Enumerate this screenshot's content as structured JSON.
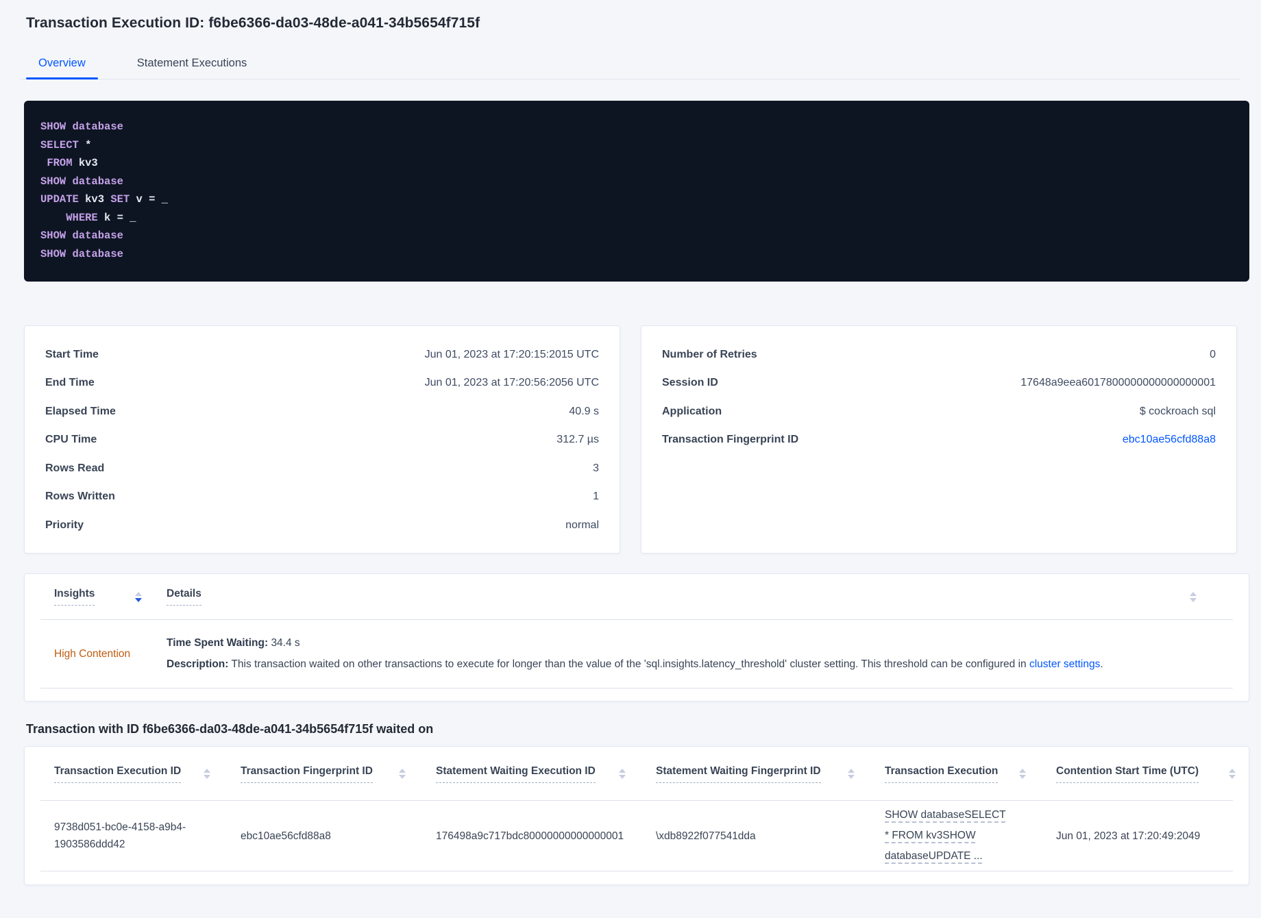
{
  "colors": {
    "accent_blue": "#0156ff",
    "warning_orange": "#bf5b10",
    "code_background": "#0d1522",
    "code_keyword": "#c5a1e9",
    "code_text": "#e7eaf3"
  },
  "header": {
    "title": "Transaction Execution ID: f6be6366-da03-48de-a041-34b5654f715f"
  },
  "tabs": [
    {
      "label": "Overview",
      "active": true
    },
    {
      "label": "Statement Executions",
      "active": false
    }
  ],
  "sql_box": {
    "lines": [
      {
        "segments": [
          {
            "text": "SHOW database",
            "kw": true
          }
        ]
      },
      {
        "segments": [
          {
            "text": "SELECT ",
            "kw": true
          },
          {
            "text": "*",
            "kw": false
          }
        ]
      },
      {
        "segments": [
          {
            "text": " ",
            "kw": false
          },
          {
            "text": "FROM",
            "kw": true
          },
          {
            "text": " kv3",
            "kw": false
          }
        ]
      },
      {
        "segments": [
          {
            "text": "SHOW database",
            "kw": true
          }
        ]
      },
      {
        "segments": [
          {
            "text": "UPDATE",
            "kw": true
          },
          {
            "text": " kv3 ",
            "kw": false
          },
          {
            "text": "SET",
            "kw": true
          },
          {
            "text": " v = _",
            "kw": false
          }
        ]
      },
      {
        "segments": [
          {
            "text": "    ",
            "kw": false
          },
          {
            "text": "WHERE",
            "kw": true
          },
          {
            "text": " k = _",
            "kw": false
          }
        ]
      },
      {
        "segments": [
          {
            "text": "SHOW database",
            "kw": true
          }
        ]
      },
      {
        "segments": [
          {
            "text": "SHOW database",
            "kw": true
          }
        ]
      }
    ]
  },
  "details_left": {
    "rows": [
      {
        "label": "Start Time",
        "value": "Jun 01, 2023 at 17:20:15:2015 UTC"
      },
      {
        "label": "End Time",
        "value": "Jun 01, 2023 at 17:20:56:2056 UTC"
      },
      {
        "label": "Elapsed Time",
        "value": "40.9 s"
      },
      {
        "label": "CPU Time",
        "value": "312.7 µs"
      },
      {
        "label": "Rows Read",
        "value": "3"
      },
      {
        "label": "Rows Written",
        "value": "1"
      },
      {
        "label": "Priority",
        "value": "normal"
      }
    ]
  },
  "details_right": {
    "rows": [
      {
        "label": "Number of Retries",
        "value": "0"
      },
      {
        "label": "Session ID",
        "value": "17648a9eea6017800000000000000001"
      },
      {
        "label": "Application",
        "value": "$ cockroach sql"
      },
      {
        "label": "Transaction Fingerprint ID",
        "value": "ebc10ae56cfd88a8",
        "link": true
      }
    ]
  },
  "insights_table": {
    "insights_column": "Insights",
    "details_column": "Details",
    "row": {
      "insight": "High Contention",
      "waiting_label": "Time Spent Waiting:",
      "waiting_value": "34.4 s",
      "description_label": "Description:",
      "description_text": "This transaction waited on other transactions to execute for longer than the value of the 'sql.insights.latency_threshold' cluster setting. This threshold can be configured in ",
      "description_link": "cluster settings",
      "description_suffix": "."
    }
  },
  "waited_section": {
    "heading": "Transaction with ID f6be6366-da03-48de-a041-34b5654f715f waited on",
    "columns": [
      "Transaction Execution ID",
      "Transaction Fingerprint ID",
      "Statement Waiting Execution ID",
      "Statement Waiting Fingerprint ID",
      "Transaction Execution",
      "Contention Start Time (UTC)"
    ],
    "row": {
      "transaction_execution_id": "9738d051-bc0e-4158-a9b4-1903586ddd42",
      "transaction_fingerprint_id": "ebc10ae56cfd88a8",
      "statement_waiting_execution_id": "176498a9c717bdc80000000000000001",
      "statement_waiting_fingerprint_id": "\\xdb8922f077541dda",
      "transaction_execution": "SHOW databaseSELECT * FROM kv3SHOW databaseUPDATE ...",
      "contention_start_time": "Jun 01, 2023 at 17:20:49:2049"
    }
  }
}
